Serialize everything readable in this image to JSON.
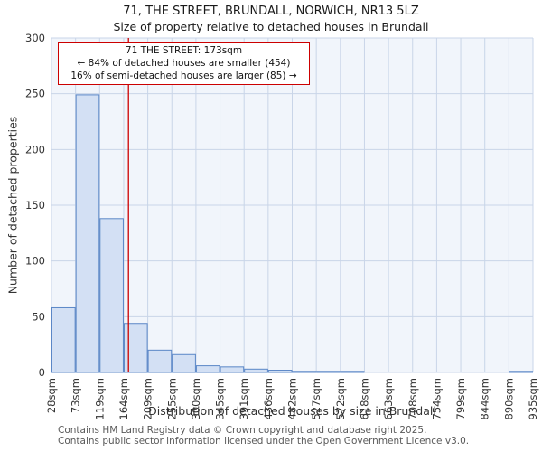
{
  "chart": {
    "title": "71, THE STREET, BRUNDALL, NORWICH, NR13 5LZ",
    "subtitle": "Size of property relative to detached houses in Brundall",
    "ylabel": "Number of detached properties",
    "xlabel": "Distribution of detached houses by size in Brundall"
  },
  "chart_data": {
    "type": "bar",
    "bin_labels": [
      "28sqm",
      "73sqm",
      "119sqm",
      "164sqm",
      "209sqm",
      "255sqm",
      "300sqm",
      "345sqm",
      "391sqm",
      "436sqm",
      "482sqm",
      "527sqm",
      "572sqm",
      "618sqm",
      "663sqm",
      "708sqm",
      "754sqm",
      "799sqm",
      "844sqm",
      "890sqm",
      "935sqm"
    ],
    "values": [
      58,
      249,
      138,
      44,
      20,
      16,
      6,
      5,
      3,
      2,
      1,
      1,
      1,
      0,
      0,
      0,
      0,
      0,
      0,
      1
    ],
    "title": "71, THE STREET, BRUNDALL, NORWICH, NR13 5LZ",
    "xlabel": "Distribution of detached houses by size in Brundall",
    "ylabel": "Number of detached properties",
    "ylim": [
      0,
      300
    ],
    "ytick_step": 50,
    "grid": "on",
    "marker_value_sqm": 173,
    "x_range_sqm": [
      28,
      935
    ],
    "colors": {
      "bar_fill": "#d3e0f4",
      "bar_stroke": "#5b87c7",
      "marker_line": "#cc0000",
      "grid": "#c9d5e8",
      "plot_bg": "#f1f5fb",
      "tick_text": "#333333"
    }
  },
  "annotation": {
    "line1": "71 THE STREET: 173sqm",
    "line2": "← 84% of detached houses are smaller (454)",
    "line3": "16% of semi-detached houses are larger (85) →"
  },
  "footer": {
    "line1": "Contains HM Land Registry data © Crown copyright and database right 2025.",
    "line2": "Contains public sector information licensed under the Open Government Licence v3.0."
  }
}
